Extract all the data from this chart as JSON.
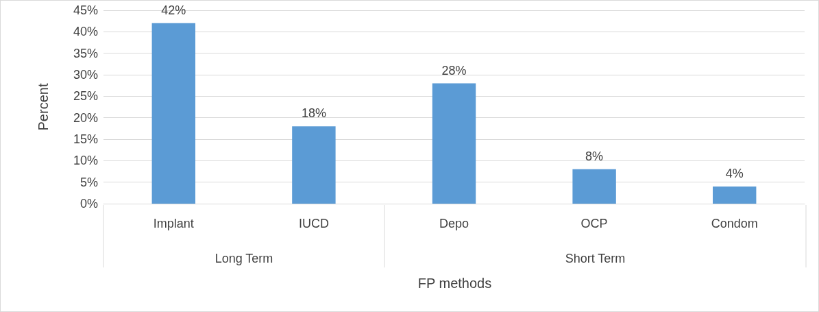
{
  "chart_data": {
    "type": "bar",
    "categories": [
      "Implant",
      "IUCD",
      "Depo",
      "OCP",
      "Condom"
    ],
    "values": [
      42,
      18,
      28,
      8,
      4
    ],
    "value_labels": [
      "42%",
      "18%",
      "28%",
      "8%",
      "4%"
    ],
    "color": "#5b9bd5",
    "ylabel": "Percent",
    "xlabel": "FP methods",
    "ylim": [
      0,
      45
    ],
    "yticks": [
      {
        "value": 0,
        "label": "0%"
      },
      {
        "value": 5,
        "label": "5%"
      },
      {
        "value": 10,
        "label": "10%"
      },
      {
        "value": 15,
        "label": "15%"
      },
      {
        "value": 20,
        "label": "20%"
      },
      {
        "value": 25,
        "label": "25%"
      },
      {
        "value": 30,
        "label": "30%"
      },
      {
        "value": 35,
        "label": "35%"
      },
      {
        "value": 40,
        "label": "40%"
      },
      {
        "value": 45,
        "label": "45%"
      }
    ],
    "annotations": [
      "Long Term",
      "Short Term"
    ],
    "grid": "y"
  }
}
